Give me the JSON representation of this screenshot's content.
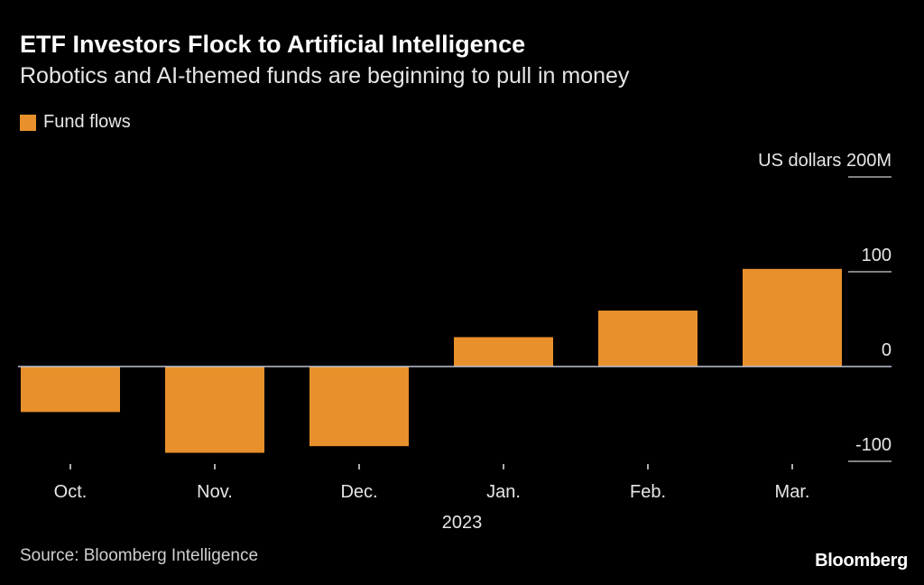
{
  "header": {
    "title": "ETF Investors Flock to Artificial Intelligence",
    "subtitle": "Robotics and AI-themed funds are beginning to pull in money"
  },
  "legend": {
    "label": "Fund flows"
  },
  "colors": {
    "bar": "#e8902c",
    "zero_line": "#bfc4d6",
    "grid": "#ffffff",
    "text": "#e6e6e6"
  },
  "footer": {
    "source": "Source: Bloomberg Intelligence",
    "brand": "Bloomberg"
  },
  "chart_data": {
    "type": "bar",
    "title": "ETF Investors Flock to Artificial Intelligence",
    "subtitle": "Robotics and AI-themed funds are beginning to pull in money",
    "categories": [
      "Oct.",
      "Nov.",
      "Dec.",
      "Jan.",
      "Feb.",
      "Mar."
    ],
    "year_label": "2023",
    "series": [
      {
        "name": "Fund flows",
        "values": [
          -48,
          -91,
          -84,
          31,
          59,
          103
        ]
      }
    ],
    "ylabel": "US dollars",
    "yticks": [
      {
        "value": 200,
        "label": "US dollars 200M"
      },
      {
        "value": 100,
        "label": "100"
      },
      {
        "value": 0,
        "label": "0"
      },
      {
        "value": -100,
        "label": "-100"
      }
    ],
    "ylim": [
      -100,
      200
    ],
    "legend_position": "top-left"
  }
}
